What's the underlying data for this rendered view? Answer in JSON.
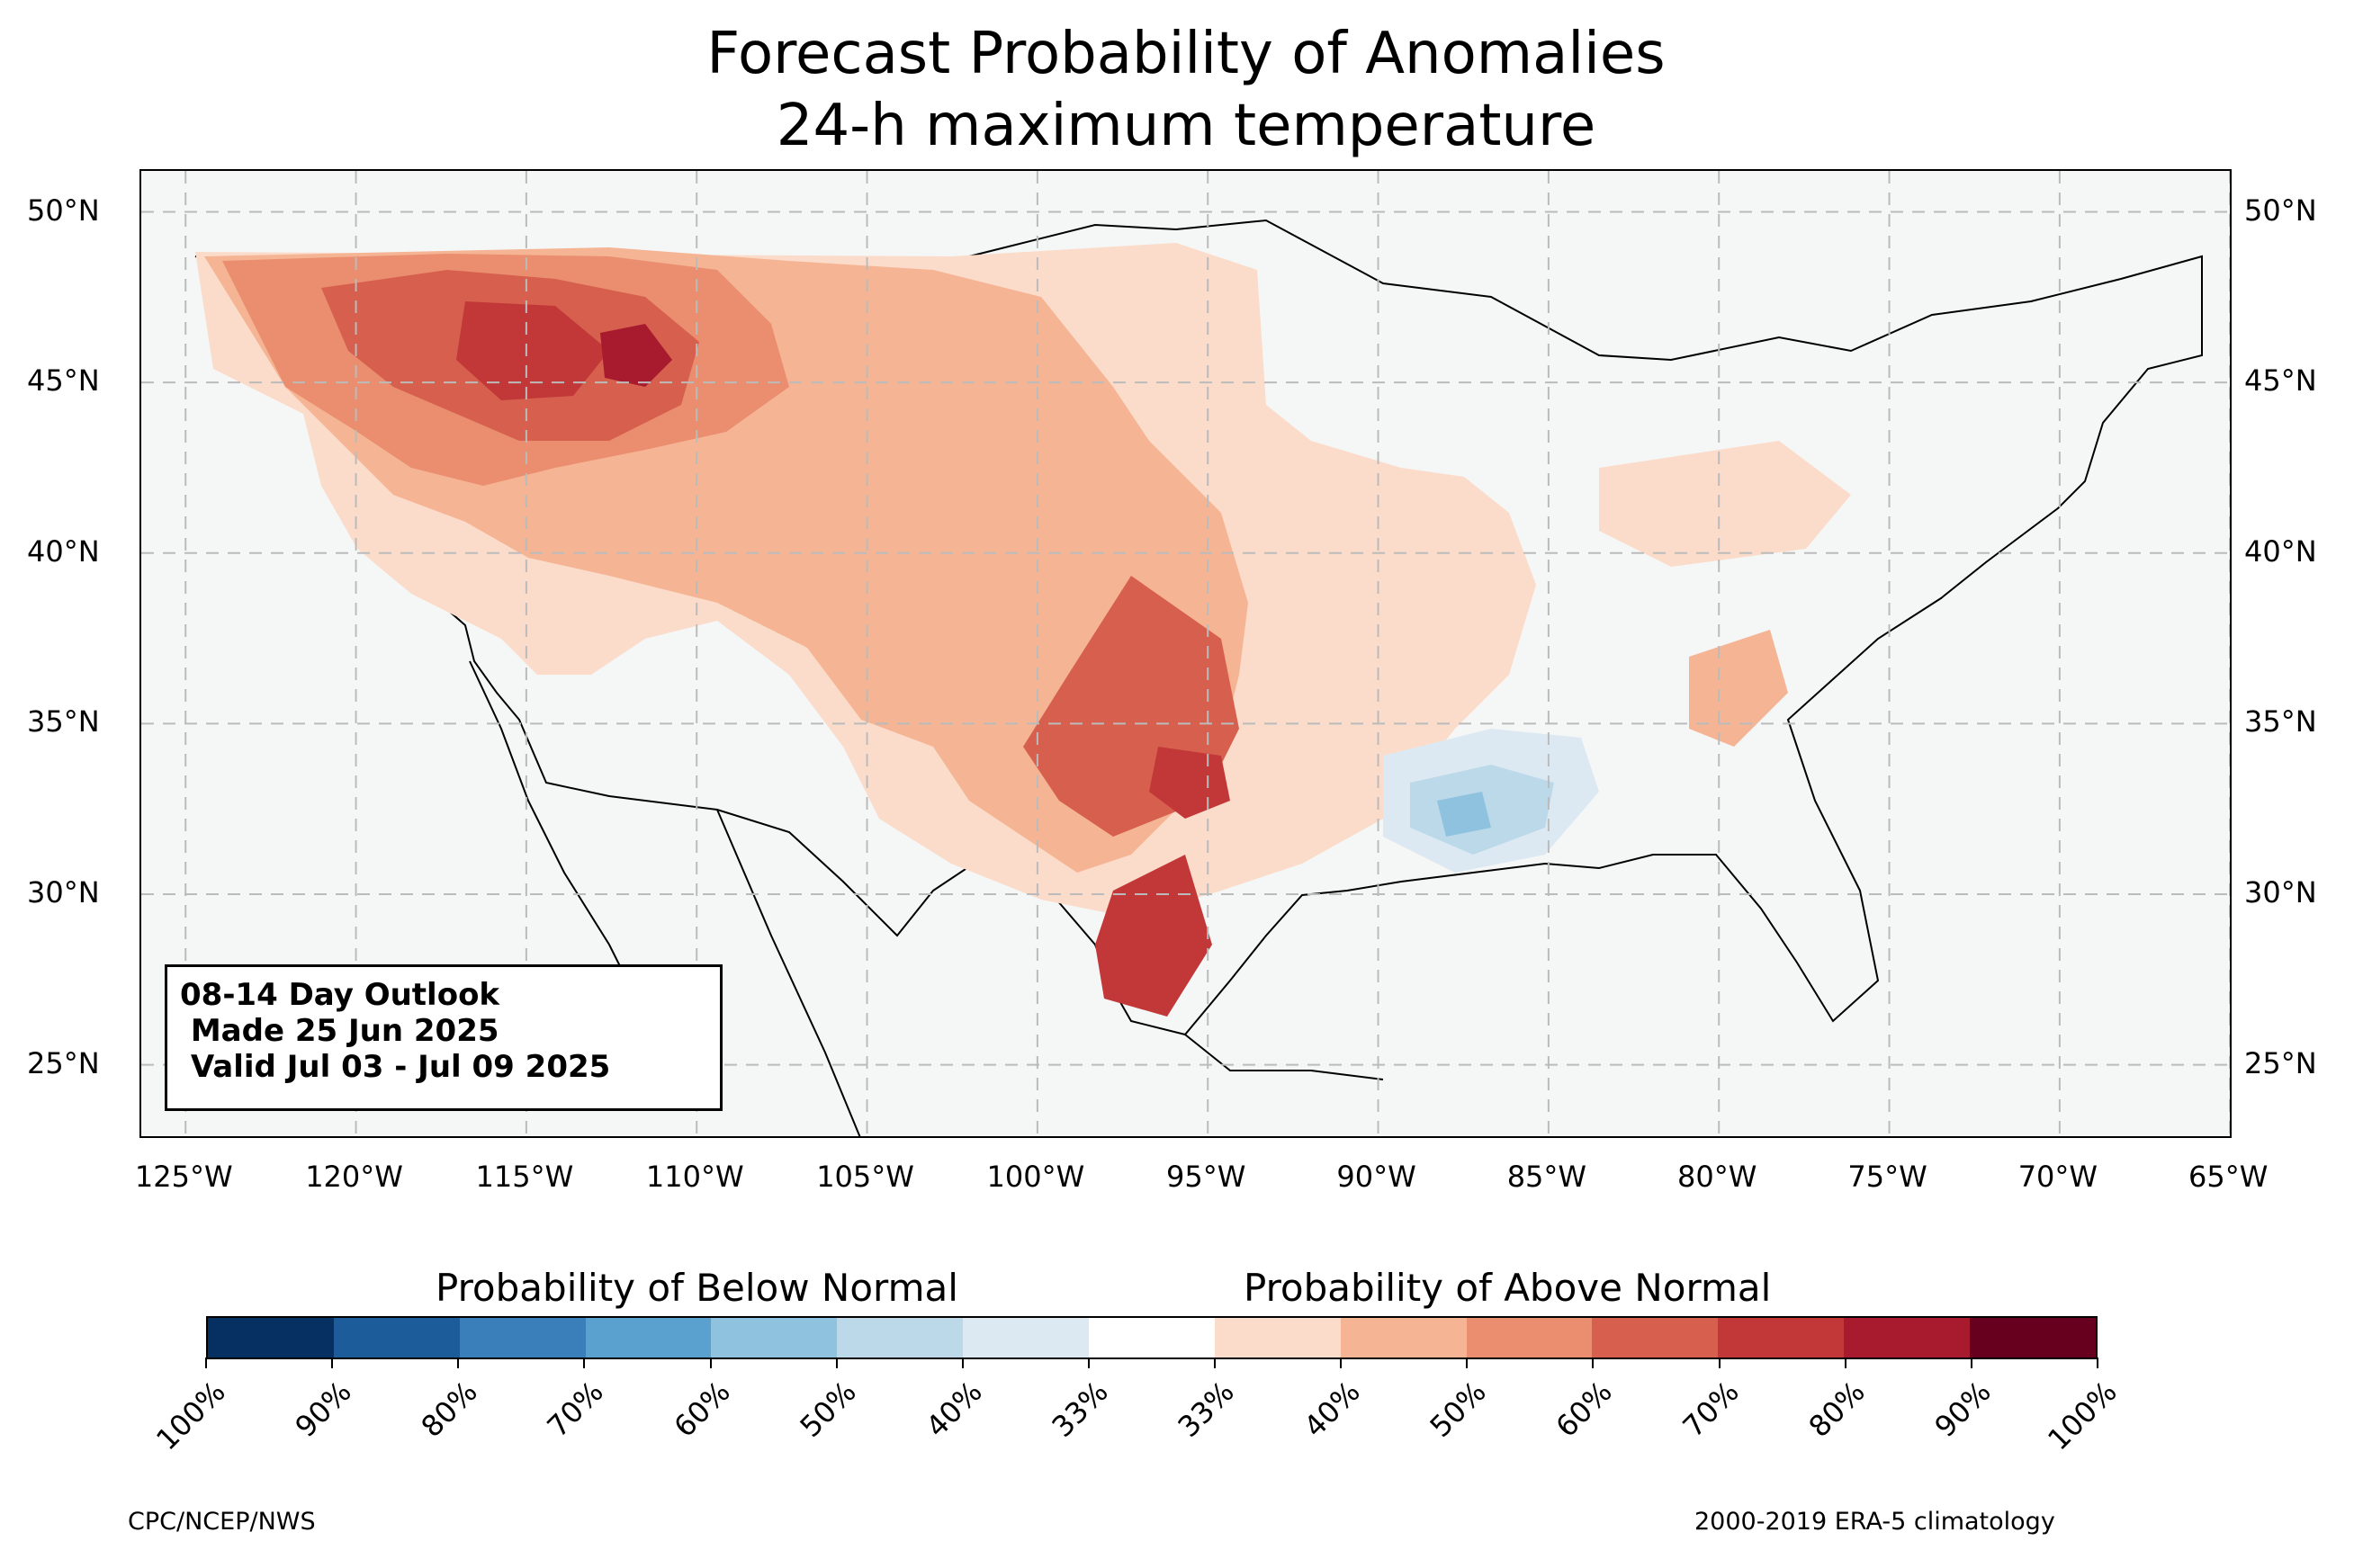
{
  "title": {
    "line1": "Forecast Probability of Anomalies",
    "line2": "24-h maximum temperature"
  },
  "map": {
    "lat_labels": [
      "50°N",
      "45°N",
      "40°N",
      "35°N",
      "30°N",
      "25°N"
    ],
    "lon_labels": [
      "125°W",
      "120°W",
      "115°W",
      "110°W",
      "105°W",
      "100°W",
      "95°W",
      "90°W",
      "85°W",
      "80°W",
      "75°W",
      "70°W",
      "65°W"
    ],
    "lon_range": [
      -126.3,
      -64.9
    ],
    "lat_range": [
      22.8,
      51.2
    ],
    "background_color": "#f5f6f6",
    "gridline_style": "dashed light gray"
  },
  "outlook_box": {
    "line1": "08-14 Day Outlook",
    "line2": " Made 25 Jun 2025",
    "line3": " Valid Jul 03 - Jul 09 2025"
  },
  "colorbar": {
    "below_header": "Probability of Below Normal",
    "above_header": "Probability of Above Normal",
    "tick_labels": [
      "100%",
      "90%",
      "80%",
      "70%",
      "60%",
      "50%",
      "40%",
      "33%",
      "33%",
      "40%",
      "50%",
      "60%",
      "70%",
      "80%",
      "90%",
      "100%"
    ],
    "colors": [
      "#053061",
      "#1c5c9a",
      "#3a7fba",
      "#5aa1cf",
      "#8ec2de",
      "#bcd9ea",
      "#dde9f2",
      "#ffffff",
      "#fbdcca",
      "#f5b494",
      "#ea8e6f",
      "#d6604d",
      "#c23838",
      "#a81b2e",
      "#67001f"
    ]
  },
  "footer": {
    "left": "CPC/NCEP/NWS",
    "right": "2000-2019 ERA-5 climatology"
  }
}
